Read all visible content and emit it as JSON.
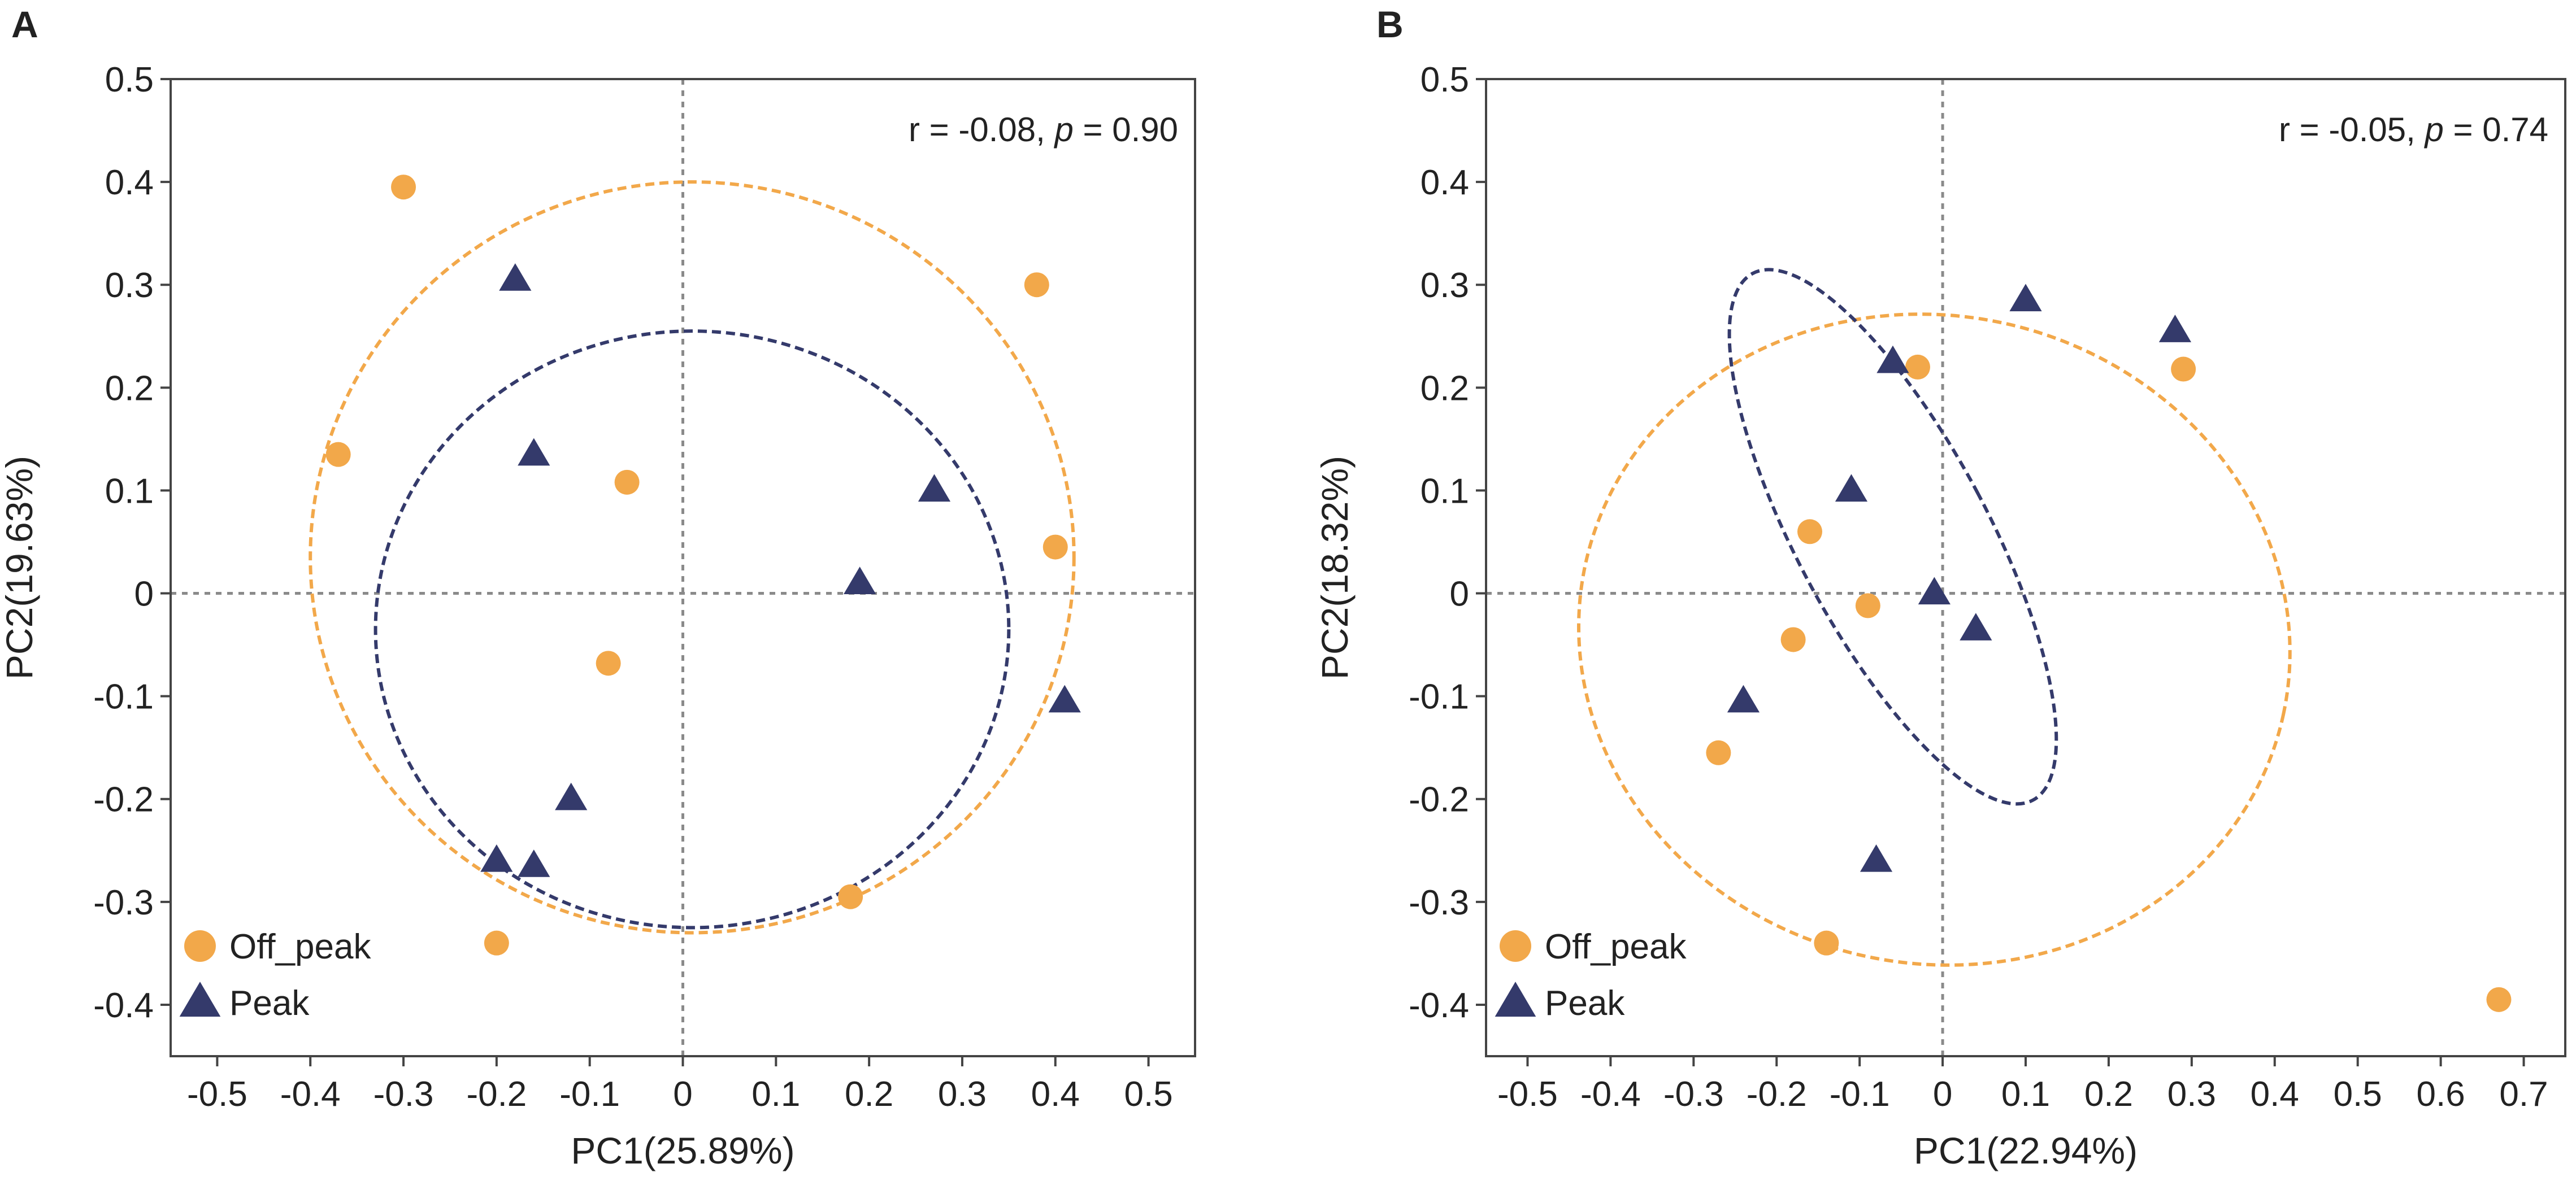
{
  "colors": {
    "off_peak": "#F2A84A",
    "peak": "#343A6B",
    "frame": "#444444",
    "reference": "#8A8A8A"
  },
  "chart_data": [
    {
      "type": "scatter",
      "panel_label": "A",
      "title": "",
      "xlabel": "PC1(25.89%)",
      "ylabel": "PC2(19.63%)",
      "xlim": [
        -0.55,
        0.55
      ],
      "ylim": [
        -0.45,
        0.5
      ],
      "x_ticks": [
        -0.5,
        -0.4,
        -0.3,
        -0.2,
        -0.1,
        0,
        0.1,
        0.2,
        0.3,
        0.4,
        0.5
      ],
      "x_tick_labels": [
        "-0.5",
        "-0.4",
        "-0.3",
        "-0.2",
        "-0.1",
        "0",
        "0.1",
        "0.2",
        "0.3",
        "0.4",
        "0.5"
      ],
      "y_ticks": [
        0.5,
        0.4,
        0.3,
        0.2,
        0.1,
        0,
        -0.1,
        -0.2,
        -0.3,
        -0.4
      ],
      "y_tick_labels": [
        "0.5",
        "0.4",
        "0.3",
        "0.2",
        "0.1",
        "0",
        "-0.1",
        "-0.2",
        "-0.3",
        "-0.4"
      ],
      "grid": false,
      "reference_lines": {
        "x": 0,
        "y": 0
      },
      "annotation": {
        "prefix": "r = -0.08, ",
        "italic": "p",
        "suffix": " = 0.90"
      },
      "legend": {
        "position": "bottom-left",
        "entries": [
          {
            "label": "Off_peak",
            "marker": "circle"
          },
          {
            "label": "Peak",
            "marker": "triangle"
          }
        ]
      },
      "series": [
        {
          "name": "Off_peak",
          "marker": "circle",
          "x": [
            -0.3,
            -0.37,
            -0.06,
            -0.08,
            0.38,
            0.4,
            0.18,
            -0.2
          ],
          "y": [
            0.395,
            0.135,
            0.108,
            -0.068,
            0.3,
            0.045,
            -0.295,
            -0.34
          ]
        },
        {
          "name": "Peak",
          "marker": "triangle",
          "x": [
            -0.18,
            -0.16,
            0.27,
            0.19,
            0.41,
            -0.12,
            -0.2,
            -0.16
          ],
          "y": [
            0.305,
            0.135,
            0.1,
            0.01,
            -0.105,
            -0.2,
            -0.26,
            -0.265
          ]
        }
      ],
      "ellipses": [
        {
          "group": "Off_peak",
          "cx": 0.01,
          "cy": 0.035,
          "rx": 0.41,
          "ry": 0.365,
          "angle": 0
        },
        {
          "group": "Peak",
          "cx": 0.01,
          "cy": -0.035,
          "rx": 0.34,
          "ry": 0.29,
          "angle": 0
        }
      ]
    },
    {
      "type": "scatter",
      "panel_label": "B",
      "title": "",
      "xlabel": "PC1(22.94%)",
      "ylabel": "PC2(18.32%)",
      "xlim": [
        -0.55,
        0.75
      ],
      "ylim": [
        -0.45,
        0.5
      ],
      "x_ticks": [
        -0.5,
        -0.4,
        -0.3,
        -0.2,
        -0.1,
        0,
        0.1,
        0.2,
        0.3,
        0.4,
        0.5,
        0.6,
        0.7
      ],
      "x_tick_labels": [
        "-0.5",
        "-0.4",
        "-0.3",
        "-0.2",
        "-0.1",
        "0",
        "0.1",
        "0.2",
        "0.3",
        "0.4",
        "0.5",
        "0.6",
        "0.7"
      ],
      "y_ticks": [
        0.5,
        0.4,
        0.3,
        0.2,
        0.1,
        0,
        -0.1,
        -0.2,
        -0.3,
        -0.4
      ],
      "y_tick_labels": [
        "0.5",
        "0.4",
        "0.3",
        "0.2",
        "0.1",
        "0",
        "-0.1",
        "-0.2",
        "-0.3",
        "-0.4"
      ],
      "grid": false,
      "reference_lines": {
        "x": 0,
        "y": 0
      },
      "annotation": {
        "prefix": "r = -0.05, ",
        "italic": "p",
        "suffix": " = 0.74"
      },
      "legend": {
        "position": "bottom-left",
        "entries": [
          {
            "label": "Off_peak",
            "marker": "circle"
          },
          {
            "label": "Peak",
            "marker": "triangle"
          }
        ]
      },
      "series": [
        {
          "name": "Off_peak",
          "marker": "circle",
          "x": [
            -0.03,
            0.29,
            -0.16,
            -0.18,
            -0.09,
            -0.27,
            -0.14,
            0.67
          ],
          "y": [
            0.22,
            0.218,
            0.06,
            -0.045,
            -0.012,
            -0.155,
            -0.34,
            -0.395
          ]
        },
        {
          "name": "Peak",
          "marker": "triangle",
          "x": [
            0.1,
            0.28,
            -0.06,
            -0.11,
            -0.01,
            0.04,
            -0.24,
            -0.08
          ],
          "y": [
            0.285,
            0.255,
            0.225,
            0.1,
            0.0,
            -0.035,
            -0.105,
            -0.26
          ]
        },
        {
          "name": "",
          "marker": "none",
          "x": [],
          "y": []
        }
      ],
      "ellipses": [
        {
          "group": "Off_peak",
          "cx": -0.01,
          "cy": -0.045,
          "rx": 0.43,
          "ry": 0.315,
          "angle": 12
        },
        {
          "group": "Peak",
          "cx": -0.06,
          "cy": 0.055,
          "rx": 0.115,
          "ry": 0.29,
          "angle": -28
        }
      ]
    }
  ]
}
